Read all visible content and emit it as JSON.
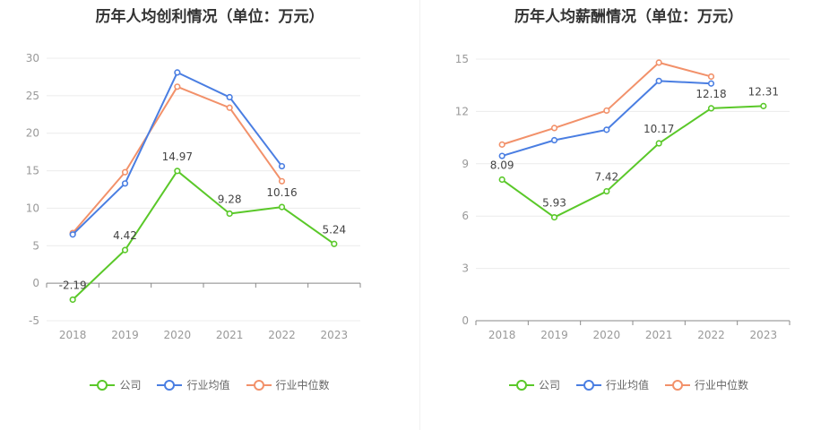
{
  "chart_data": [
    {
      "type": "line",
      "title": "历年人均创利情况（单位：万元）",
      "categories": [
        "2018",
        "2019",
        "2020",
        "2021",
        "2022",
        "2023"
      ],
      "ylim": [
        -5,
        30
      ],
      "yticks": [
        -5,
        0,
        5,
        10,
        15,
        20,
        25,
        30
      ],
      "ytick_labels": [
        "-5",
        "0",
        "5",
        "10",
        "15",
        "20",
        "25",
        "30"
      ],
      "grid": true,
      "legend_position": "bottom",
      "series": [
        {
          "name": "公司",
          "color": "#5ac829",
          "values": [
            -2.19,
            4.42,
            14.97,
            9.28,
            10.16,
            5.24
          ],
          "labels": [
            "-2.19",
            "4.42",
            "14.97",
            "9.28",
            "10.16",
            "5.24"
          ]
        },
        {
          "name": "行业均值",
          "color": "#4a7ee2",
          "values": [
            6.5,
            13.3,
            28.1,
            24.8,
            15.6,
            null
          ],
          "labels": null
        },
        {
          "name": "行业中位数",
          "color": "#f2916a",
          "values": [
            6.7,
            14.8,
            26.2,
            23.4,
            13.6,
            null
          ],
          "labels": null
        }
      ]
    },
    {
      "type": "line",
      "title": "历年人均薪酬情况（单位：万元）",
      "categories": [
        "2018",
        "2019",
        "2020",
        "2021",
        "2022",
        "2023"
      ],
      "ylim": [
        0,
        15
      ],
      "yticks": [
        0,
        3,
        6,
        9,
        12,
        15
      ],
      "ytick_labels": [
        "0",
        "3",
        "6",
        "9",
        "12",
        "15"
      ],
      "grid": true,
      "legend_position": "bottom",
      "series": [
        {
          "name": "公司",
          "color": "#5ac829",
          "values": [
            8.09,
            5.93,
            7.42,
            10.17,
            12.18,
            12.31
          ],
          "labels": [
            "8.09",
            "5.93",
            "7.42",
            "10.17",
            "12.18",
            "12.31"
          ]
        },
        {
          "name": "行业均值",
          "color": "#4a7ee2",
          "values": [
            9.45,
            10.35,
            10.95,
            13.75,
            13.6,
            null
          ],
          "labels": null
        },
        {
          "name": "行业中位数",
          "color": "#f2916a",
          "values": [
            10.1,
            11.05,
            12.05,
            14.8,
            14.0,
            null
          ],
          "labels": null
        }
      ]
    }
  ]
}
